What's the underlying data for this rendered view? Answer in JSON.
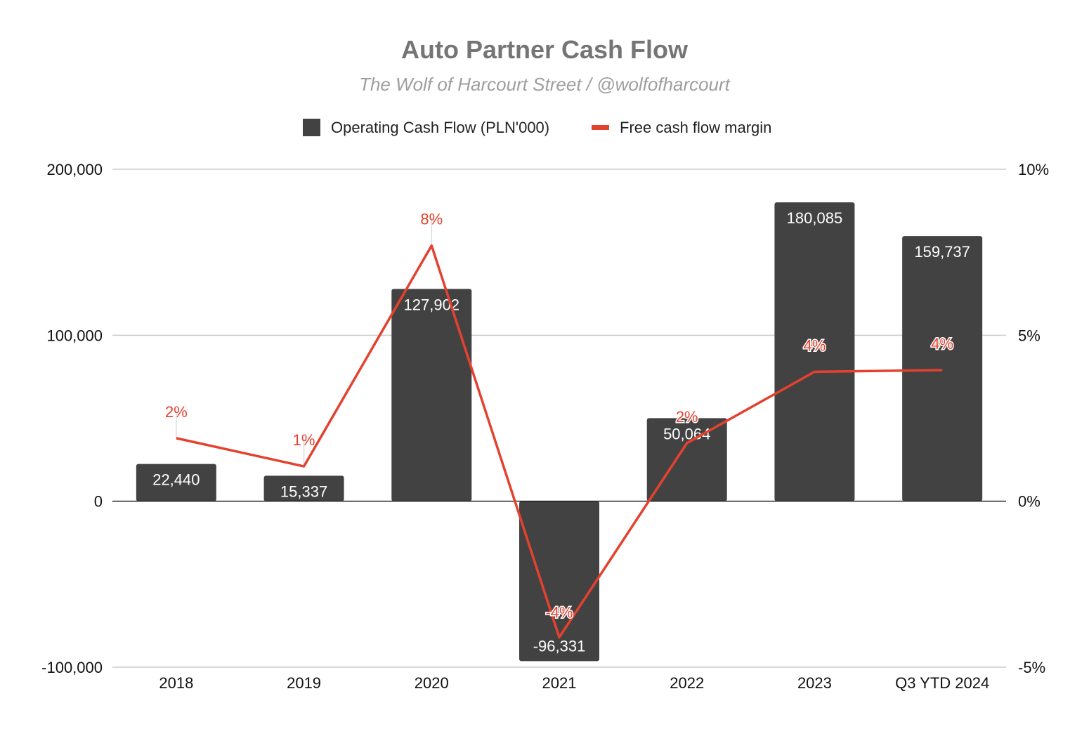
{
  "chart_data": {
    "type": "bar",
    "title": "Auto Partner Cash Flow",
    "subtitle": "The Wolf of Harcourt Street / @wolfofharcourt",
    "legend_position": "top",
    "grid": true,
    "categories": [
      "2018",
      "2019",
      "2020",
      "2021",
      "2022",
      "2023",
      "Q3 YTD 2024"
    ],
    "series": [
      {
        "name": "Operating Cash Flow (PLN'000)",
        "type": "bar",
        "axis": "left",
        "color": "#424242",
        "values": [
          22440,
          15337,
          127902,
          -96331,
          50064,
          180085,
          159737
        ],
        "labels": [
          "22,440",
          "15,337",
          "127,902",
          "-96,331",
          "50,064",
          "180,085",
          "159,737"
        ]
      },
      {
        "name": "Free cash flow margin",
        "type": "line",
        "axis": "right",
        "color": "#e4412f",
        "values": [
          1.9,
          1.05,
          7.7,
          -4.1,
          1.75,
          3.9,
          3.95
        ],
        "labels": [
          "2%",
          "1%",
          "8%",
          "-4%",
          "2%",
          "4%",
          "4%"
        ]
      }
    ],
    "y_left": {
      "min": -100000,
      "max": 200000,
      "ticks": [
        -100000,
        0,
        100000,
        200000
      ],
      "tick_labels": [
        "-100,000",
        "0",
        "100,000",
        "200,000"
      ]
    },
    "y_right": {
      "min": -5,
      "max": 10,
      "ticks": [
        -5,
        0,
        5,
        10
      ],
      "tick_labels": [
        "-5%",
        "0%",
        "5%",
        "10%"
      ]
    }
  }
}
